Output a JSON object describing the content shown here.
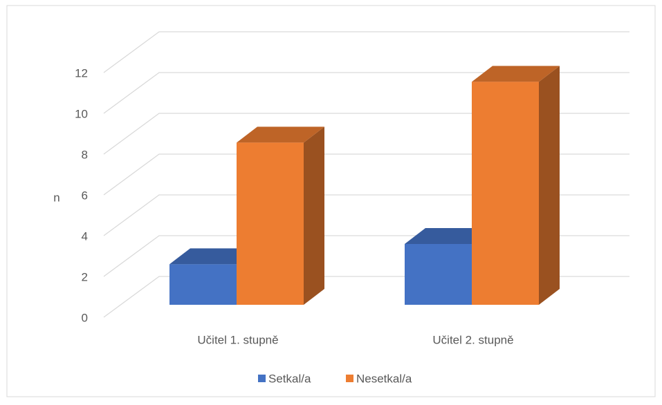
{
  "chart_data": {
    "type": "bar3d",
    "y_label": "n",
    "categories": [
      "Učitel 1. stupně",
      "Učitel 2. stupně"
    ],
    "series": [
      {
        "name": "Setkal/a",
        "color": "#4472c4",
        "values": [
          2,
          3
        ]
      },
      {
        "name": "Nesetkal/a",
        "color": "#ed7d31",
        "values": [
          8,
          11
        ]
      }
    ],
    "ylim": [
      0,
      12
    ],
    "yticks": [
      0,
      2,
      4,
      6,
      8,
      10,
      12
    ],
    "grid": true,
    "legend": "bottom"
  }
}
